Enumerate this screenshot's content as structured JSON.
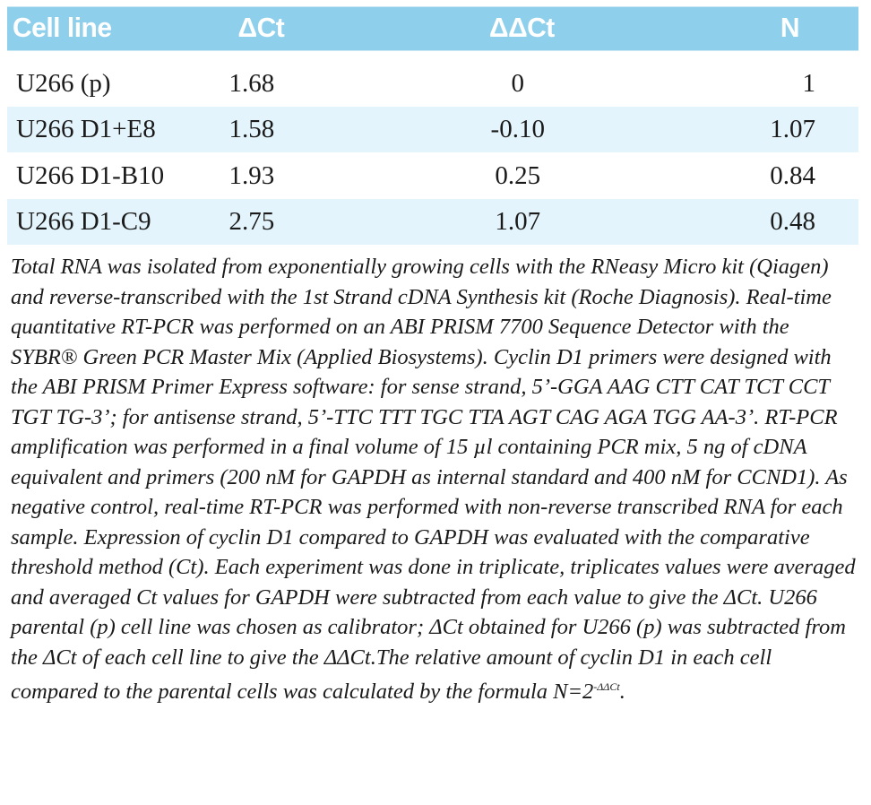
{
  "table": {
    "headers": [
      "Cell line",
      "ΔCt",
      "ΔΔCt",
      "N"
    ],
    "rows": [
      [
        "U266 (p)",
        "1.68",
        "0",
        "1"
      ],
      [
        "U266 D1+E8",
        "1.58",
        "-0.10",
        "1.07"
      ],
      [
        "U266 D1-B10",
        "1.93",
        "0.25",
        "0.84"
      ],
      [
        "U266 D1-C9",
        "2.75",
        "1.07",
        "0.48"
      ]
    ]
  },
  "note": {
    "text_main": "Total RNA was isolated from exponentially growing cells with the RNeasy Micro kit (Qiagen) and reverse-transcribed with the 1st Strand cDNA Synthesis kit (Roche Diagnosis). Real-time quantitative RT-PCR was performed on an ABI PRISM 7700 Sequence Detector with the SYBR® Green PCR Master Mix (Applied Biosystems). Cyclin D1 primers were designed with the ABI PRISM Primer Express software: for sense strand, 5’-GGA AAG CTT CAT TCT CCT TGT TG-3’; for antisense strand, 5’-TTC TTT TGC TTA AGT CAG AGA TGG AA-3’. RT-PCR amplification was performed in a final volume of 15 µl containing PCR mix, 5 ng of cDNA equivalent and primers (200 nM for GAPDH as internal standard and 400 nM for CCND1). As negative control, real-time RT-PCR was performed with non-reverse transcribed RNA for each sample. Expression of cyclin D1 compared to GAPDH was evaluated with the comparative threshold method (Ct). Each experiment was done in triplicate, triplicates values were averaged and averaged Ct values for GAPDH were subtracted from each value to give the ΔCt. U266 parental (p) cell line was chosen as calibrator; ΔCt obtained for U266 (p) was subtracted from the ΔCt of each cell line to give the ΔΔCt.The relative amount of cyclin D1 in each cell compared to the parental cells was calculated by the formula N=2",
    "formula_exponent": "-ΔΔCt",
    "text_end": "."
  }
}
